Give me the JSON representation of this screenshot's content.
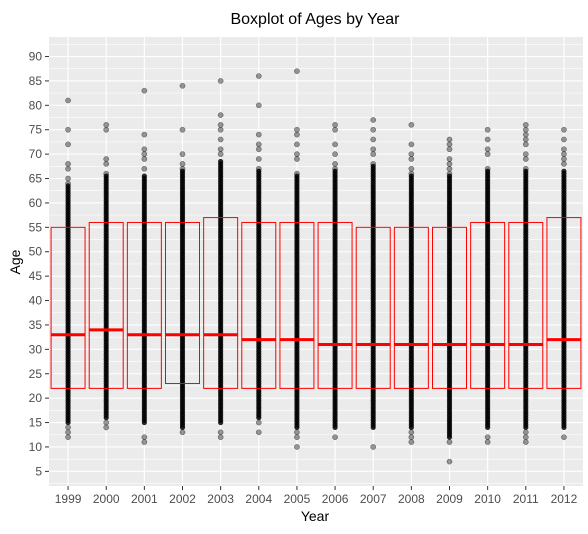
{
  "chart_data": {
    "type": "boxplot",
    "title": "Boxplot of Ages by Year",
    "xlabel": "Year",
    "ylabel": "Age",
    "ylim": [
      2,
      94
    ],
    "y_ticks": [
      5,
      10,
      15,
      20,
      25,
      30,
      35,
      40,
      45,
      50,
      55,
      60,
      65,
      70,
      75,
      80,
      85,
      90
    ],
    "grid": true,
    "colors": {
      "panel_background": "#ebebeb",
      "grid": "#ffffff",
      "box_outline": "#ff0000",
      "median": "#ff0000",
      "points": "#000000"
    },
    "categories": [
      "1999",
      "2000",
      "2001",
      "2002",
      "2003",
      "2004",
      "2005",
      "2006",
      "2007",
      "2008",
      "2009",
      "2010",
      "2011",
      "2012"
    ],
    "boxes": [
      {
        "year": "1999",
        "q1": 22,
        "median": 33,
        "q3": 55,
        "dense_min": 15,
        "dense_max": 63,
        "outliers": [
          12,
          13,
          14,
          64,
          65,
          67,
          68,
          72,
          75,
          81
        ]
      },
      {
        "year": "2000",
        "q1": 22,
        "median": 34,
        "q3": 56,
        "dense_min": 16,
        "dense_max": 65,
        "outliers": [
          14,
          15,
          66,
          68,
          69,
          75,
          76
        ]
      },
      {
        "year": "2001",
        "q1": 22,
        "median": 33,
        "q3": 56,
        "dense_min": 15,
        "dense_max": 65,
        "outliers": [
          11,
          12,
          67,
          69,
          70,
          71,
          74,
          83
        ]
      },
      {
        "year": "2002",
        "q1": 23,
        "median": 33,
        "q3": 56,
        "dense_min": 14,
        "dense_max": 66,
        "outliers": [
          13,
          67,
          68,
          70,
          75,
          84
        ]
      },
      {
        "year": "2003",
        "q1": 22,
        "median": 33,
        "q3": 57,
        "dense_min": 15,
        "dense_max": 68,
        "outliers": [
          12,
          13,
          70,
          71,
          73,
          75,
          76,
          78,
          85
        ]
      },
      {
        "year": "2004",
        "q1": 22,
        "median": 32,
        "q3": 56,
        "dense_min": 16,
        "dense_max": 66,
        "outliers": [
          13,
          15,
          67,
          69,
          71,
          72,
          74,
          80,
          86
        ]
      },
      {
        "year": "2005",
        "q1": 22,
        "median": 32,
        "q3": 56,
        "dense_min": 14,
        "dense_max": 65,
        "outliers": [
          10,
          12,
          13,
          66,
          69,
          70,
          72,
          74,
          75,
          87
        ]
      },
      {
        "year": "2006",
        "q1": 22,
        "median": 31,
        "q3": 56,
        "dense_min": 14,
        "dense_max": 66,
        "outliers": [
          12,
          67,
          68,
          70,
          72,
          75,
          76
        ]
      },
      {
        "year": "2007",
        "q1": 22,
        "median": 31,
        "q3": 55,
        "dense_min": 14,
        "dense_max": 67,
        "outliers": [
          10,
          68,
          70,
          71,
          73,
          75,
          77
        ]
      },
      {
        "year": "2008",
        "q1": 22,
        "median": 31,
        "q3": 55,
        "dense_min": 14,
        "dense_max": 65,
        "outliers": [
          11,
          12,
          13,
          66,
          67,
          69,
          70,
          72,
          76
        ]
      },
      {
        "year": "2009",
        "q1": 22,
        "median": 31,
        "q3": 55,
        "dense_min": 12,
        "dense_max": 65,
        "outliers": [
          7,
          11,
          66,
          67,
          68,
          69,
          71,
          72,
          73
        ]
      },
      {
        "year": "2010",
        "q1": 22,
        "median": 31,
        "q3": 56,
        "dense_min": 14,
        "dense_max": 66,
        "outliers": [
          11,
          12,
          67,
          70,
          71,
          73,
          75
        ]
      },
      {
        "year": "2011",
        "q1": 22,
        "median": 31,
        "q3": 56,
        "dense_min": 14,
        "dense_max": 66,
        "outliers": [
          11,
          12,
          13,
          67,
          69,
          70,
          72,
          73,
          74,
          75,
          76
        ]
      },
      {
        "year": "2012",
        "q1": 22,
        "median": 32,
        "q3": 57,
        "dense_min": 14,
        "dense_max": 66,
        "outliers": [
          12,
          68,
          69,
          70,
          71,
          73,
          75
        ]
      }
    ]
  }
}
